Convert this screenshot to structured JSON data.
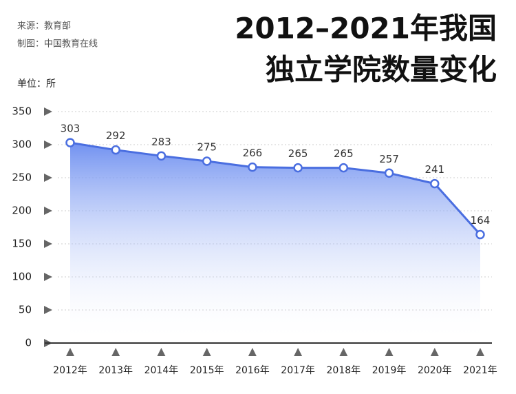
{
  "chart_data": {
    "type": "line",
    "title": [
      "2012–2021年我国",
      "独立学院数量变化"
    ],
    "source": "来源：教育部",
    "credit": "制图：中国教育在线",
    "unit": "单位：所",
    "categories": [
      "2012年",
      "2013年",
      "2014年",
      "2015年",
      "2016年",
      "2017年",
      "2018年",
      "2019年",
      "2020年",
      "2021年"
    ],
    "series": [
      {
        "name": "独立学院数量",
        "color": "#4a6ee0",
        "values": [
          303,
          292,
          283,
          275,
          266,
          265,
          265,
          257,
          241,
          164
        ]
      }
    ],
    "ylim": [
      0,
      350
    ],
    "yticks": [
      0,
      50,
      100,
      150,
      200,
      250,
      300,
      350
    ],
    "grid": true
  }
}
